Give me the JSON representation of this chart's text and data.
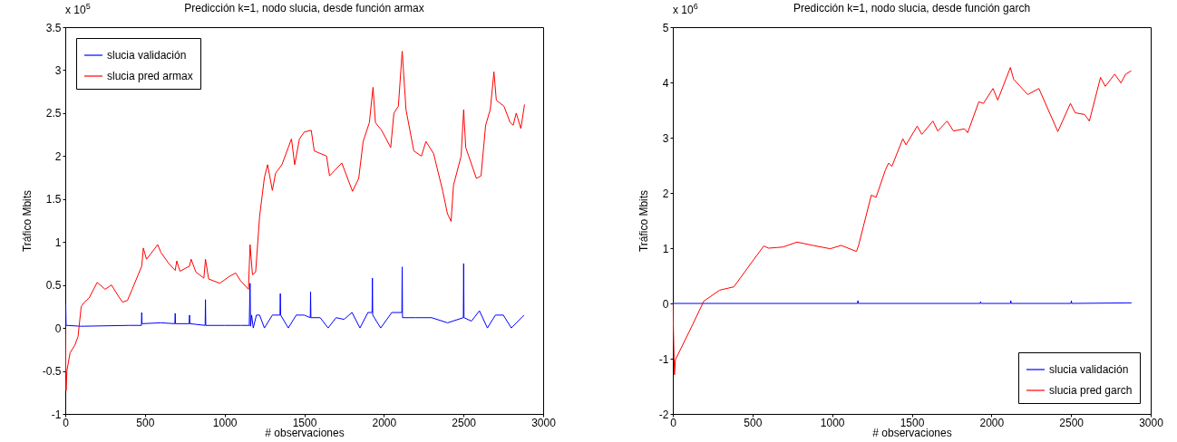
{
  "chart_data": [
    {
      "type": "line",
      "title": "Predicción k=1, nodo slucia, desde función armax",
      "xlabel": "# observaciones",
      "ylabel": "Tráfico Mbits",
      "annotations": [
        "x 10$^{5}$"
      ],
      "xlim": [
        0,
        3000
      ],
      "xticks": [
        0,
        500,
        1000,
        1500,
        2000,
        2500,
        3000
      ],
      "ylim": [
        -1,
        3.5
      ],
      "yticks": [
        -1,
        -0.5,
        0,
        0.5,
        1,
        1.5,
        2,
        2.5,
        3,
        3.5
      ],
      "legend": "top left",
      "series": [
        {
          "name": "slucia validación",
          "color": "#0000ff",
          "x": [
            0,
            3,
            5,
            8,
            100,
            400,
            478,
            480,
            482,
            600,
            688,
            690,
            692,
            778,
            780,
            782,
            878,
            880,
            882,
            1000,
            1100,
            1155,
            1160,
            1163,
            1170,
            1180,
            1200,
            1220,
            1250,
            1300,
            1348,
            1350,
            1352,
            1400,
            1450,
            1500,
            1538,
            1540,
            1542,
            1600,
            1650,
            1700,
            1750,
            1800,
            1850,
            1900,
            1926,
            1928,
            1930,
            1980,
            2050,
            2113,
            2115,
            2117,
            2200,
            2300,
            2400,
            2499,
            2501,
            2503,
            2550,
            2600,
            2650,
            2700,
            2750,
            2800,
            2880
          ],
          "values": [
            0,
            0.27,
            0.03,
            0.03,
            0.02,
            0.03,
            0.03,
            0.18,
            0.05,
            0.06,
            0.05,
            0.17,
            0.05,
            0.05,
            0.15,
            0.05,
            0.03,
            0.33,
            0.03,
            0.03,
            0.03,
            0.03,
            0.52,
            0.02,
            0.15,
            0,
            0.15,
            0.15,
            0,
            0.15,
            0.15,
            0.4,
            0.15,
            0,
            0.15,
            0.15,
            0.12,
            0.42,
            0.12,
            0.12,
            0,
            0.12,
            0.1,
            0.18,
            0,
            0.18,
            0.18,
            0.58,
            0.15,
            0,
            0.18,
            0.18,
            0.71,
            0.12,
            0.12,
            0.12,
            0.06,
            0.12,
            0.75,
            0.12,
            0.08,
            0.2,
            0,
            0.15,
            0.15,
            0,
            0.15
          ]
        },
        {
          "name": "slucia pred armax",
          "color": "#ff0000",
          "x": [
            0,
            5,
            10,
            30,
            60,
            80,
            100,
            120,
            150,
            200,
            250,
            290,
            330,
            360,
            390,
            420,
            480,
            490,
            510,
            560,
            580,
            600,
            650,
            690,
            700,
            720,
            780,
            790,
            820,
            870,
            880,
            900,
            970,
            1030,
            1070,
            1100,
            1150,
            1160,
            1175,
            1195,
            1220,
            1250,
            1270,
            1300,
            1320,
            1360,
            1400,
            1420,
            1440,
            1470,
            1500,
            1544,
            1563,
            1640,
            1659,
            1736,
            1803,
            1842,
            1870,
            1909,
            1932,
            1947,
            1986,
            2043,
            2063,
            2091,
            2115,
            2139,
            2188,
            2236,
            2264,
            2312,
            2370,
            2399,
            2422,
            2437,
            2485,
            2501,
            2514,
            2581,
            2610,
            2639,
            2668,
            2691,
            2706,
            2754,
            2793,
            2812,
            2831,
            2860,
            2883
          ],
          "values": [
            0,
            -0.73,
            -0.5,
            -0.29,
            -0.2,
            -0.1,
            0.25,
            0.3,
            0.35,
            0.53,
            0.45,
            0.5,
            0.38,
            0.3,
            0.32,
            0.45,
            0.72,
            0.93,
            0.8,
            0.92,
            0.97,
            0.88,
            0.75,
            0.67,
            0.78,
            0.66,
            0.72,
            0.8,
            0.65,
            0.58,
            0.8,
            0.57,
            0.52,
            0.6,
            0.64,
            0.55,
            0.45,
            0.97,
            0.62,
            0.65,
            1.3,
            1.75,
            1.9,
            1.6,
            1.8,
            1.9,
            2.1,
            2.2,
            1.9,
            2.2,
            2.28,
            2.3,
            2.06,
            2.0,
            1.77,
            1.92,
            1.59,
            1.74,
            2.17,
            2.39,
            2.8,
            2.39,
            2.3,
            2.1,
            2.5,
            2.58,
            3.22,
            2.54,
            2.06,
            2.0,
            2.17,
            2.03,
            1.59,
            1.33,
            1.24,
            1.66,
            2.0,
            2.54,
            2.1,
            1.74,
            1.77,
            2.36,
            2.54,
            2.98,
            2.65,
            2.58,
            2.39,
            2.36,
            2.5,
            2.32,
            2.6
          ]
        }
      ]
    },
    {
      "type": "line",
      "title": "Predicción k=1, nodo slucia, desde función garch",
      "xlabel": "# observaciones",
      "ylabel": "Tráfico Mbits",
      "annotations": [
        "x 10$^{6}$"
      ],
      "xlim": [
        0,
        3000
      ],
      "xticks": [
        0,
        500,
        1000,
        1500,
        2000,
        2500,
        3000
      ],
      "ylim": [
        -2,
        5
      ],
      "yticks": [
        -2,
        -1,
        0,
        1,
        2,
        3,
        4,
        5
      ],
      "legend": "bottom right",
      "series": [
        {
          "name": "slucia validación",
          "color": "#0000ff",
          "x": [
            0,
            1160,
            1162,
            1164,
            1930,
            1932,
            1934,
            2120,
            2122,
            2124,
            2500,
            2502,
            2504,
            2880
          ],
          "values": [
            0,
            0,
            0.05,
            0,
            0,
            0.03,
            0,
            0,
            0.05,
            0,
            0,
            0.05,
            0,
            0.01
          ]
        },
        {
          "name": "slucia pred garch",
          "color": "#ff0000",
          "x": [
            0,
            10,
            16,
            125,
            194,
            294,
            383,
            502,
            571,
            601,
            690,
            780,
            879,
            988,
            1057,
            1153,
            1167,
            1246,
            1276,
            1335,
            1355,
            1375,
            1444,
            1464,
            1534,
            1563,
            1633,
            1663,
            1722,
            1762,
            1831,
            1851,
            1921,
            1950,
            2010,
            2040,
            2119,
            2139,
            2228,
            2298,
            2417,
            2496,
            2526,
            2585,
            2615,
            2685,
            2715,
            2774,
            2813,
            2843,
            2878
          ],
          "values": [
            0,
            -1.29,
            -1.02,
            -0.38,
            0.04,
            0.24,
            0.3,
            0.77,
            1.04,
            1.0,
            1.02,
            1.11,
            1.05,
            0.99,
            1.05,
            0.94,
            1.06,
            1.96,
            1.92,
            2.42,
            2.54,
            2.48,
            2.98,
            2.87,
            3.21,
            3.06,
            3.3,
            3.12,
            3.3,
            3.12,
            3.16,
            3.09,
            3.65,
            3.62,
            3.89,
            3.68,
            4.27,
            4.06,
            3.78,
            3.89,
            3.11,
            3.62,
            3.45,
            3.42,
            3.3,
            4.09,
            3.93,
            4.15,
            3.99,
            4.15,
            4.21
          ]
        }
      ]
    }
  ]
}
